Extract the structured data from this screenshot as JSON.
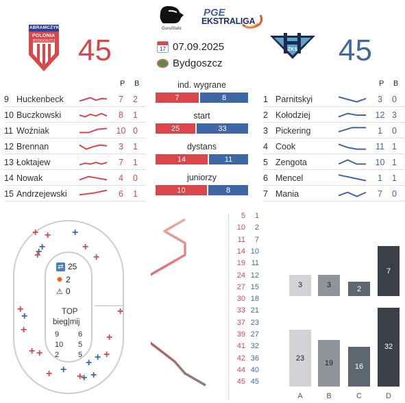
{
  "header": {
    "brand_text": "GuruStats",
    "league_line1": "PGE",
    "league_line2": "EKSTRALIGA",
    "left_team": {
      "logo_text_top": "ABRAMCZYK",
      "logo_text_mid": "POLONIA",
      "logo_text_bot": "BYDGOSZCZ",
      "score": "45"
    },
    "right_team": {
      "logo_text": "ŻKS",
      "score": "45"
    },
    "date_icon": "calendar-icon",
    "date": "07.09.2025",
    "venue_icon": "stadium-icon",
    "venue": "Bydgoszcz"
  },
  "left_riders": {
    "p_label": "P",
    "b_label": "B",
    "rows": [
      {
        "num": "9",
        "name": "Huckenbeck",
        "p": "7",
        "b": "2",
        "trend": [
          0.3,
          0.5,
          0.7,
          0.4,
          0.6,
          0.55
        ]
      },
      {
        "num": "10",
        "name": "Buczkowski",
        "p": "8",
        "b": "1",
        "trend": [
          0.5,
          0.3,
          0.6,
          0.4,
          0.7,
          0.4
        ]
      },
      {
        "num": "11",
        "name": "Woźniak",
        "p": "10",
        "b": "0",
        "trend": [
          0.3,
          0.3,
          0.7,
          0.8
        ]
      },
      {
        "num": "12",
        "name": "Brennan",
        "p": "3",
        "b": "1",
        "trend": [
          0.7,
          0.2,
          0.5,
          0.7,
          0.6
        ]
      },
      {
        "num": "13",
        "name": "Łoktajew",
        "p": "7",
        "b": "1",
        "trend": [
          0.2,
          0.4,
          0.3,
          0.5,
          0.3,
          0.5
        ]
      },
      {
        "num": "14",
        "name": "Nowak",
        "p": "4",
        "b": "0",
        "trend": [
          0.3,
          0.7,
          0.5,
          0.3
        ]
      },
      {
        "num": "15",
        "name": "Andrzejewski",
        "p": "6",
        "b": "1",
        "trend": [
          0.4,
          0.6,
          0.95
        ]
      }
    ]
  },
  "right_riders": {
    "p_label": "P",
    "b_label": "B",
    "rows": [
      {
        "num": "1",
        "name": "Parnitskyi",
        "p": "3",
        "b": "0",
        "trend": [
          0.8,
          0.5,
          0.2,
          0.6
        ]
      },
      {
        "num": "2",
        "name": "Kołodziej",
        "p": "12",
        "b": "3",
        "trend": [
          0.3,
          0.7,
          0.5,
          0.5
        ]
      },
      {
        "num": "3",
        "name": "Pickering",
        "p": "1",
        "b": "0",
        "trend": [
          0.4,
          0.9,
          0.9
        ]
      },
      {
        "num": "4",
        "name": "Cook",
        "p": "11",
        "b": "1",
        "trend": [
          0.8,
          0.4,
          0.2,
          0.2
        ]
      },
      {
        "num": "5",
        "name": "Zengota",
        "p": "10",
        "b": "1",
        "trend": [
          0.3,
          0.8,
          0.3,
          0.3
        ]
      },
      {
        "num": "6",
        "name": "Mencel",
        "p": "1",
        "b": "1",
        "trend": [
          0.9,
          0.2
        ]
      },
      {
        "num": "7",
        "name": "Mania",
        "p": "7",
        "b": "0",
        "trend": [
          0.3,
          0.7,
          0.2,
          0.7
        ]
      }
    ]
  },
  "comparisons": [
    {
      "title": "ind. wygrane",
      "left": "7",
      "right": "8"
    },
    {
      "title": "start",
      "left": "25",
      "right": "33"
    },
    {
      "title": "dystans",
      "left": "14",
      "right": "11"
    },
    {
      "title": "juniorzy",
      "left": "10",
      "right": "8"
    }
  ],
  "track": {
    "shuffle_icon": "shuffle-icon",
    "shuffle_value": "25",
    "crash_icon": "crash-icon",
    "crash_value": "2",
    "warning_icon": "warning-icon",
    "warning_value": "0",
    "top_label": "TOP",
    "top_sub": "bieg|mij",
    "top_rows": [
      {
        "a": "9",
        "b": "6"
      },
      {
        "a": "10",
        "b": "5"
      },
      {
        "a": "2",
        "b": "5"
      }
    ]
  },
  "heat_scores": {
    "left": [
      "5",
      "10",
      "11",
      "14",
      "19",
      "24",
      "27",
      "30",
      "33",
      "37",
      "39",
      "41",
      "42",
      "44",
      "45"
    ],
    "right": [
      "1",
      "2",
      "7",
      "10",
      "11",
      "12",
      "15",
      "18",
      "21",
      "23",
      "27",
      "32",
      "36",
      "40",
      "45"
    ]
  },
  "bar_chart": {
    "categories": [
      "A",
      "B",
      "C",
      "D"
    ],
    "top_values": [
      "3",
      "3",
      "2",
      "7"
    ],
    "bottom_values": [
      "23",
      "19",
      "16",
      "32"
    ],
    "colors": [
      "#d1d3d6",
      "#8e949a",
      "#5e6670",
      "#3b4047"
    ]
  }
}
